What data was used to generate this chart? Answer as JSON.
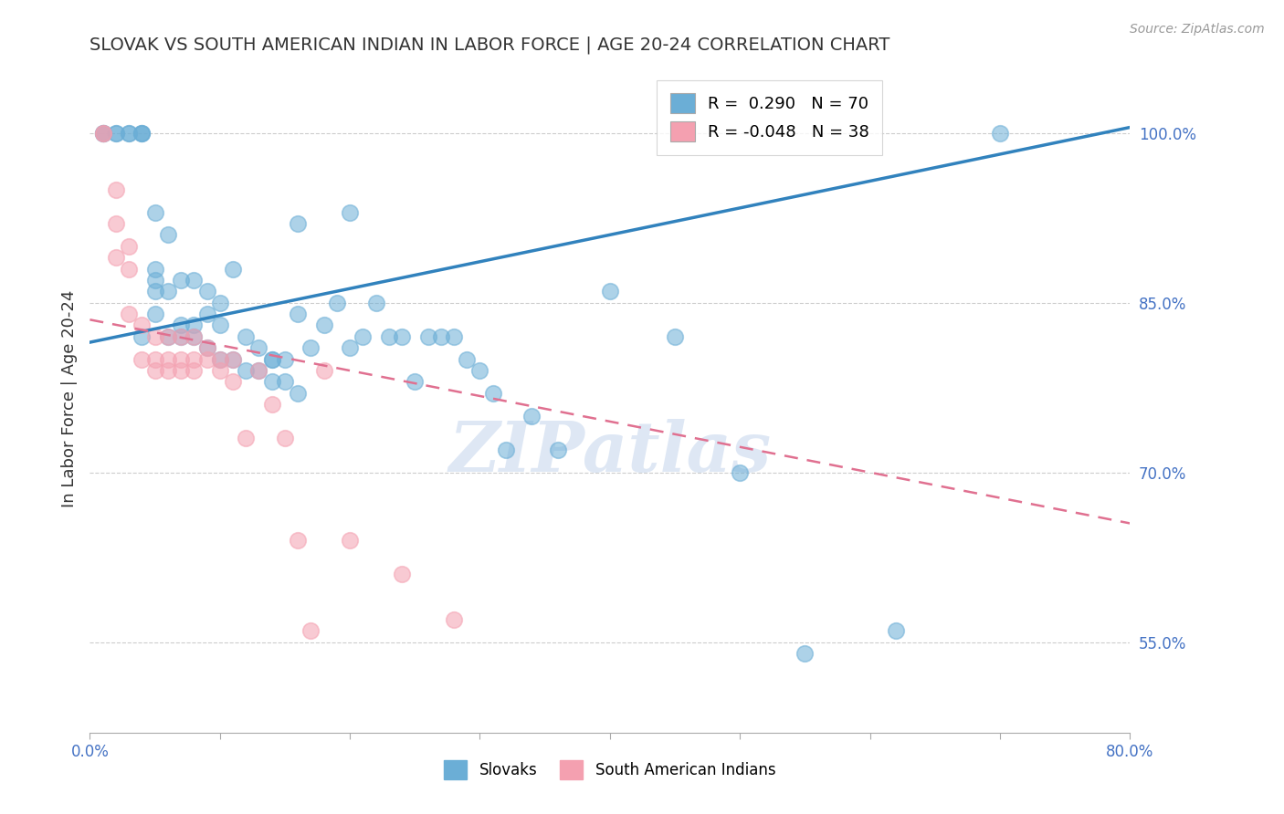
{
  "title": "SLOVAK VS SOUTH AMERICAN INDIAN IN LABOR FORCE | AGE 20-24 CORRELATION CHART",
  "source": "Source: ZipAtlas.com",
  "ylabel": "In Labor Force | Age 20-24",
  "y_ticks": [
    0.55,
    0.7,
    0.85,
    1.0
  ],
  "y_tick_labels": [
    "55.0%",
    "70.0%",
    "85.0%",
    "100.0%"
  ],
  "xlim": [
    0.0,
    80.0
  ],
  "ylim": [
    0.47,
    1.06
  ],
  "blue_color": "#6baed6",
  "pink_color": "#f4a0b0",
  "trend_blue": "#3182bd",
  "trend_pink": "#e07090",
  "legend_R_blue": "0.290",
  "legend_N_blue": "70",
  "legend_R_pink": "-0.048",
  "legend_N_pink": "38",
  "watermark": "ZIPatlas",
  "legend1": "Slovaks",
  "legend2": "South American Indians",
  "blue_x": [
    1,
    1,
    1,
    2,
    2,
    3,
    3,
    4,
    4,
    4,
    5,
    5,
    5,
    5,
    6,
    6,
    7,
    7,
    8,
    8,
    9,
    9,
    10,
    10,
    11,
    12,
    13,
    14,
    14,
    15,
    16,
    16,
    17,
    18,
    19,
    20,
    20,
    21,
    22,
    23,
    24,
    25,
    26,
    27,
    28,
    29,
    30,
    31,
    32,
    34,
    36,
    40,
    45,
    50,
    55,
    62,
    70,
    4,
    5,
    6,
    7,
    8,
    9,
    10,
    11,
    12,
    13,
    14,
    15,
    16
  ],
  "blue_y": [
    1.0,
    1.0,
    1.0,
    1.0,
    1.0,
    1.0,
    1.0,
    1.0,
    1.0,
    1.0,
    0.93,
    0.88,
    0.87,
    0.86,
    0.91,
    0.86,
    0.87,
    0.83,
    0.87,
    0.83,
    0.86,
    0.84,
    0.85,
    0.83,
    0.88,
    0.82,
    0.81,
    0.8,
    0.8,
    0.8,
    0.92,
    0.84,
    0.81,
    0.83,
    0.85,
    0.93,
    0.81,
    0.82,
    0.85,
    0.82,
    0.82,
    0.78,
    0.82,
    0.82,
    0.82,
    0.8,
    0.79,
    0.77,
    0.72,
    0.75,
    0.72,
    0.86,
    0.82,
    0.7,
    0.54,
    0.56,
    1.0,
    0.82,
    0.84,
    0.82,
    0.82,
    0.82,
    0.81,
    0.8,
    0.8,
    0.79,
    0.79,
    0.78,
    0.78,
    0.77
  ],
  "pink_x": [
    1,
    1,
    2,
    2,
    2,
    3,
    3,
    3,
    4,
    4,
    5,
    5,
    5,
    6,
    6,
    6,
    7,
    7,
    7,
    8,
    8,
    8,
    9,
    9,
    10,
    10,
    11,
    11,
    12,
    13,
    14,
    15,
    16,
    17,
    18,
    20,
    24,
    28
  ],
  "pink_y": [
    1.0,
    1.0,
    0.95,
    0.92,
    0.89,
    0.9,
    0.88,
    0.84,
    0.83,
    0.8,
    0.82,
    0.8,
    0.79,
    0.82,
    0.8,
    0.79,
    0.82,
    0.8,
    0.79,
    0.82,
    0.8,
    0.79,
    0.81,
    0.8,
    0.8,
    0.79,
    0.8,
    0.78,
    0.73,
    0.79,
    0.76,
    0.73,
    0.64,
    0.56,
    0.79,
    0.64,
    0.61,
    0.57
  ],
  "blue_trend_x": [
    0,
    80
  ],
  "blue_trend_y": [
    0.815,
    1.005
  ],
  "pink_trend_x": [
    0,
    80
  ],
  "pink_trend_y": [
    0.835,
    0.655
  ]
}
